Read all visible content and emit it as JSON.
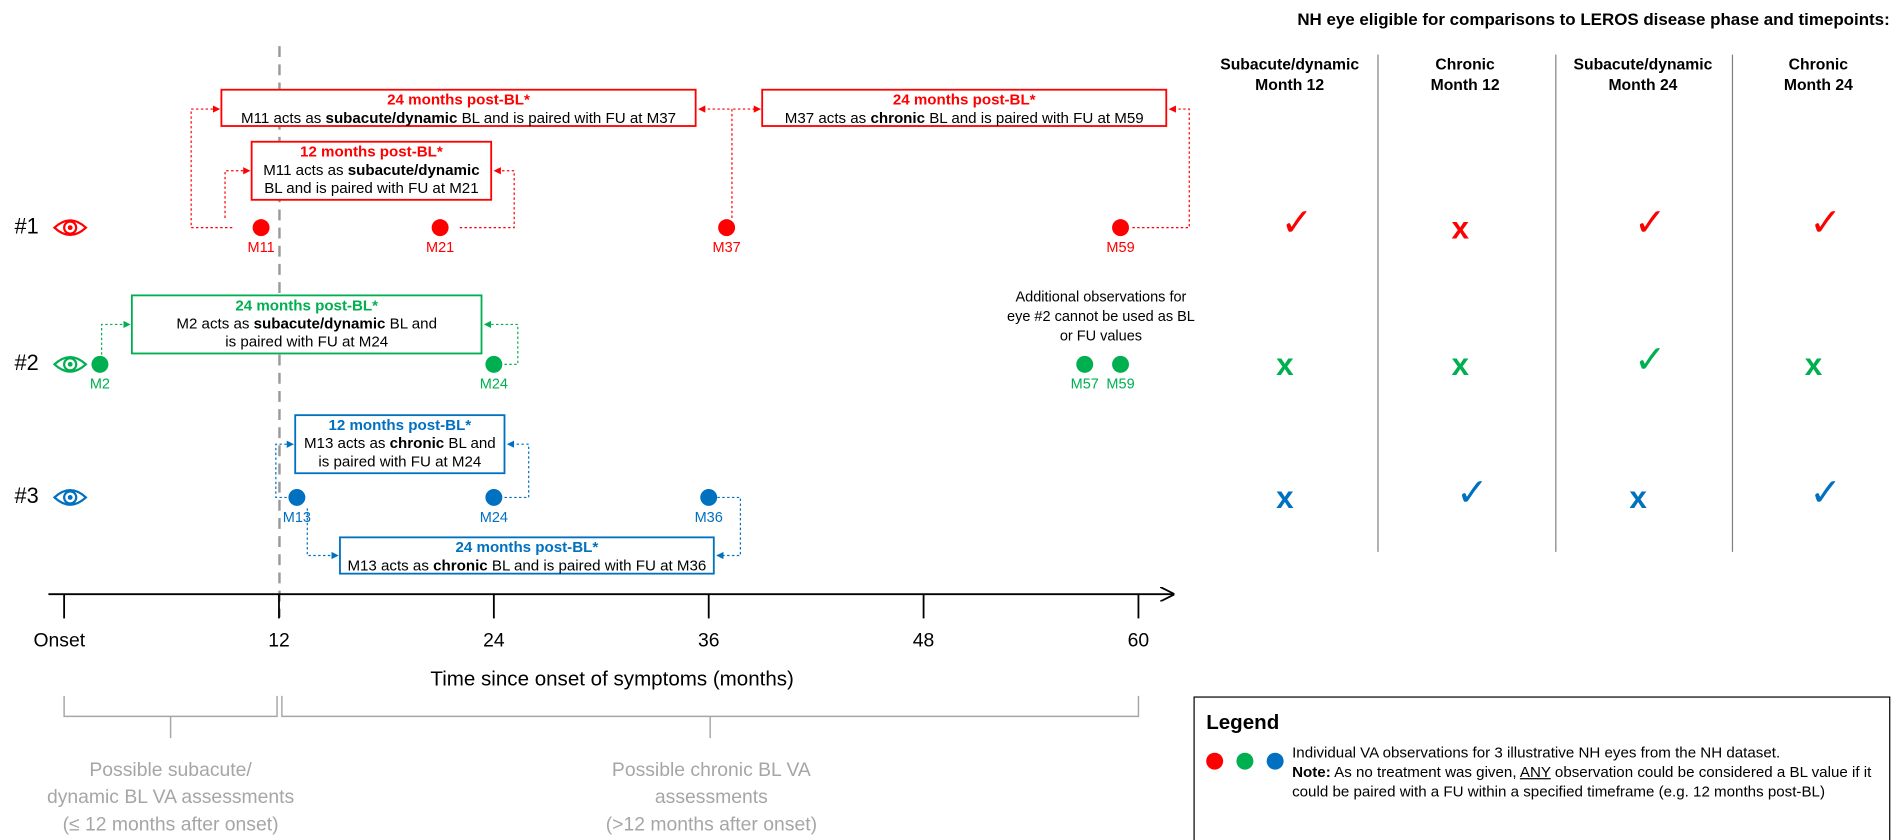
{
  "diagram": {
    "eyes": [
      {
        "label": "#1",
        "color": "#ff0000",
        "points": [
          "M11",
          "M21",
          "M37",
          "M59"
        ],
        "boxes": [
          {
            "title": "24 months post-BL*",
            "lines": [
              [
                "M11 acts as ",
                "subacute/dynamic",
                " BL and is paired with FU at M37"
              ]
            ]
          },
          {
            "title": "12 months post-BL*",
            "lines": [
              [
                "M11 acts as ",
                "subacute/dynamic"
              ],
              [
                "BL and is paired with FU at M21"
              ]
            ]
          },
          {
            "title": "24 months post-BL*",
            "lines": [
              [
                "M37 acts as ",
                "chronic",
                " BL and is paired with FU at M59"
              ]
            ]
          }
        ]
      },
      {
        "label": "#2",
        "color": "#00b050",
        "points": [
          "M2",
          "M24",
          "M57",
          "M59"
        ],
        "boxes": [
          {
            "title": "24 months post-BL*",
            "lines": [
              [
                "M2 acts as ",
                "subacute/dynamic",
                " BL and"
              ],
              [
                "is paired with FU at M24"
              ]
            ]
          }
        ]
      },
      {
        "label": "#3",
        "color": "#0070c0",
        "points": [
          "M13",
          "M24",
          "M36"
        ],
        "boxes": [
          {
            "title": "12 months post-BL*",
            "lines": [
              [
                "M13 acts as ",
                "chronic",
                " BL and"
              ],
              [
                "is paired with FU at M24"
              ]
            ]
          },
          {
            "title": "24 months post-BL*",
            "lines": [
              [
                "M13 acts as ",
                "chronic",
                " BL and is paired with FU at M36"
              ]
            ]
          }
        ]
      }
    ],
    "note": [
      "Additional observations for",
      "eye #2 cannot be used as BL",
      "or FU values"
    ],
    "axis": {
      "ticks": [
        {
          "value": 0,
          "label": "Onset"
        },
        12,
        24,
        36,
        48,
        60
      ],
      "label": "Time since onset of symptoms (months)"
    },
    "ranges": [
      [
        "Possible subacute/",
        "dynamic BL VA assessments",
        "(≤ 12 months after onset)"
      ],
      [
        "Possible chronic BL VA",
        "assessments",
        "(>12 months after onset)"
      ]
    ]
  },
  "eligibility": {
    "title": "NH eye eligible for comparisons to LEROS disease phase and timepoints:",
    "columns": [
      [
        "Subacute/dynamic",
        "Month 12"
      ],
      [
        "Chronic",
        "Month 12"
      ],
      [
        "Subacute/dynamic",
        "Month 24"
      ],
      [
        "Chronic",
        "Month 24"
      ]
    ],
    "rows": [
      [
        "✓",
        "x",
        "✓",
        "✓"
      ],
      [
        "x",
        "x",
        "✓",
        "x"
      ],
      [
        "x",
        "✓",
        "x",
        "✓"
      ]
    ]
  },
  "legend": {
    "title": "Legend",
    "text": "Individual VA observations for 3 illustrative NH eyes from the NH dataset.",
    "note_label": "Note:",
    "note": [
      " As no treatment was given, ",
      "ANY",
      " observation could be considered a BL value if it could be paired with a FU within a specified timeframe (e.g. 12 months post-BL)"
    ]
  }
}
